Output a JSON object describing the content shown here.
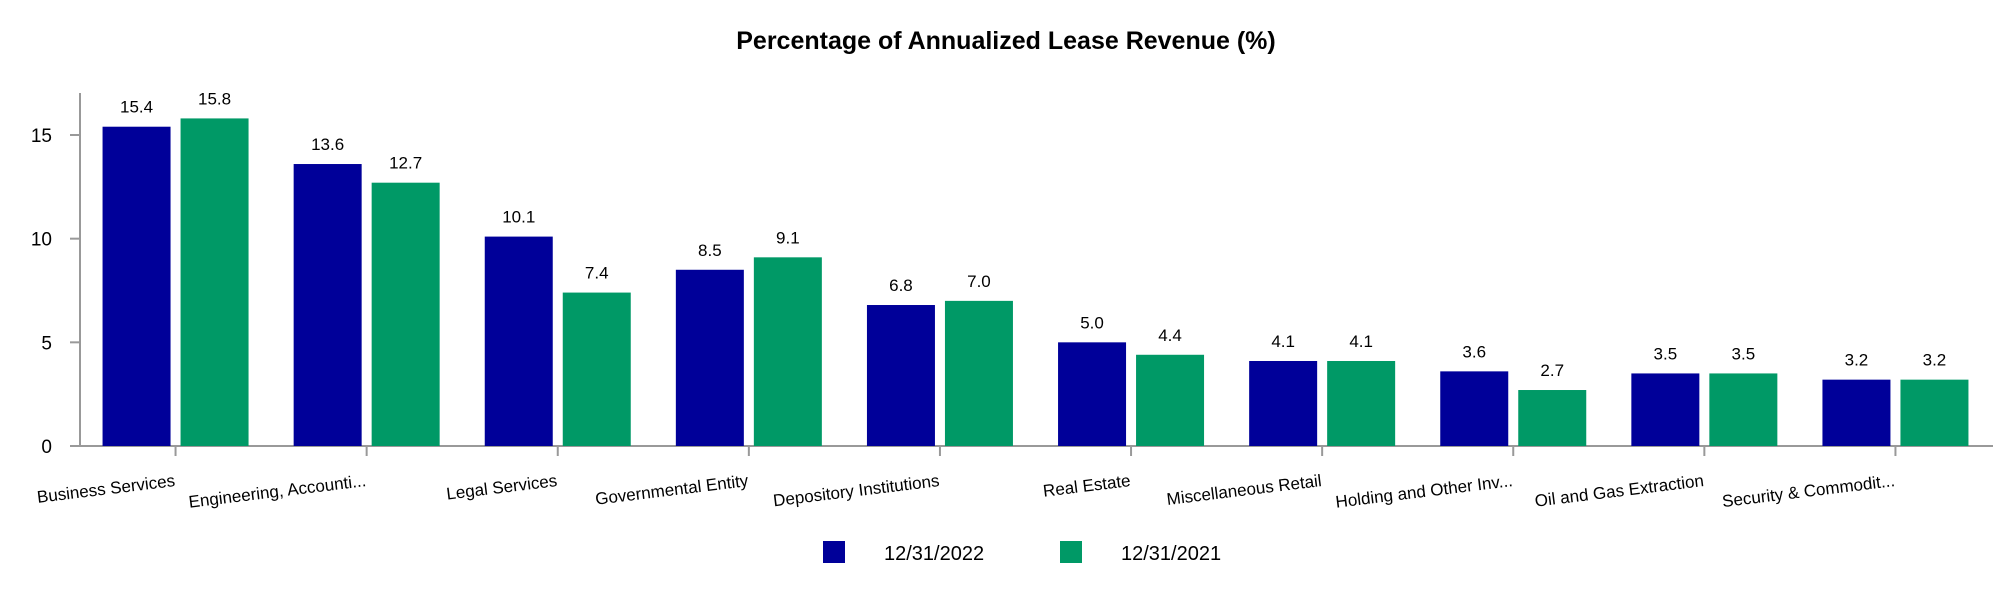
{
  "chart_data": {
    "type": "bar",
    "title": "Percentage of Annualized Lease Revenue (%)",
    "xlabel": "",
    "ylabel": "",
    "ylim": [
      0,
      17
    ],
    "yticks": [
      "0",
      "5",
      "10",
      "15"
    ],
    "grid": false,
    "legend_position": "bottom",
    "categories": [
      "Business Services",
      "Engineering, Accounti...",
      "Legal Services",
      "Governmental Entity",
      "Depository Institutions",
      "Real Estate",
      "Miscellaneous Retail",
      "Holding and Other Inv...",
      "Oil and Gas Extraction",
      "Security & Commodit..."
    ],
    "series": [
      {
        "name": "12/31/2022",
        "color": "#000099",
        "values": [
          15.4,
          13.6,
          10.1,
          8.5,
          6.8,
          5.0,
          4.1,
          3.6,
          3.5,
          3.2
        ],
        "labels": [
          "15.4",
          "13.6",
          "10.1",
          "8.5",
          "6.8",
          "5.0",
          "4.1",
          "3.6",
          "3.5",
          "3.2"
        ]
      },
      {
        "name": "12/31/2021",
        "color": "#009966",
        "values": [
          15.8,
          12.7,
          7.4,
          9.1,
          7.0,
          4.4,
          4.1,
          2.7,
          3.5,
          3.2
        ],
        "labels": [
          "15.8",
          "12.7",
          "7.4",
          "9.1",
          "7.0",
          "4.4",
          "4.1",
          "2.7",
          "3.5",
          "3.2"
        ]
      }
    ]
  }
}
